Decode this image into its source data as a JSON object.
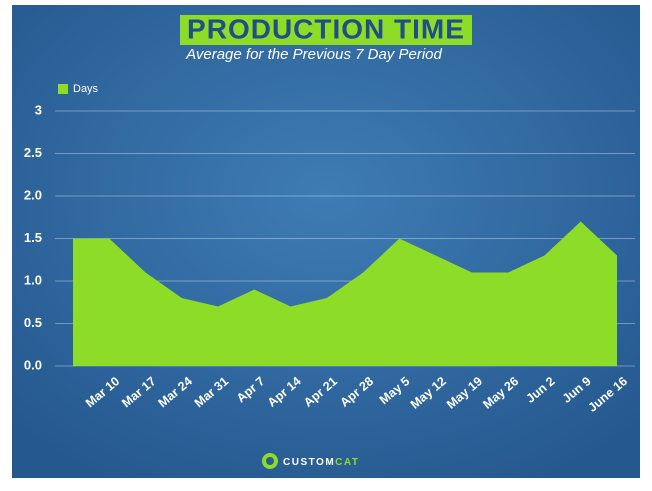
{
  "chart_data": {
    "type": "area",
    "title": "PRODUCTION TIME",
    "subtitle": "Average for the Previous 7 Day Period",
    "categories": [
      null,
      "Mar 10",
      "Mar 17",
      "Mar 24",
      "Mar 31",
      "Apr 7",
      "Apr 14",
      "Apr 21",
      "Apr 28",
      "May 5",
      "May 12",
      "May 19",
      "May 26",
      "Jun 2",
      "Jun 9",
      "June 16"
    ],
    "series": [
      {
        "name": "Days",
        "color": "#8ddc27",
        "values": [
          1.5,
          1.5,
          1.1,
          0.8,
          0.7,
          0.9,
          0.7,
          0.8,
          1.1,
          1.5,
          1.3,
          1.1,
          1.1,
          1.3,
          1.7,
          1.3
        ]
      }
    ],
    "ylim": [
      0,
      3
    ],
    "yticks": [
      {
        "value": 0,
        "label": "0.0"
      },
      0.5,
      {
        "value": 1,
        "label": "1.0"
      },
      1.5,
      {
        "value": 2,
        "label": "2.0"
      },
      2.5,
      3
    ],
    "grid": true,
    "legend": "top-left",
    "logo": [
      "CUSTOM",
      "CAT"
    ]
  }
}
